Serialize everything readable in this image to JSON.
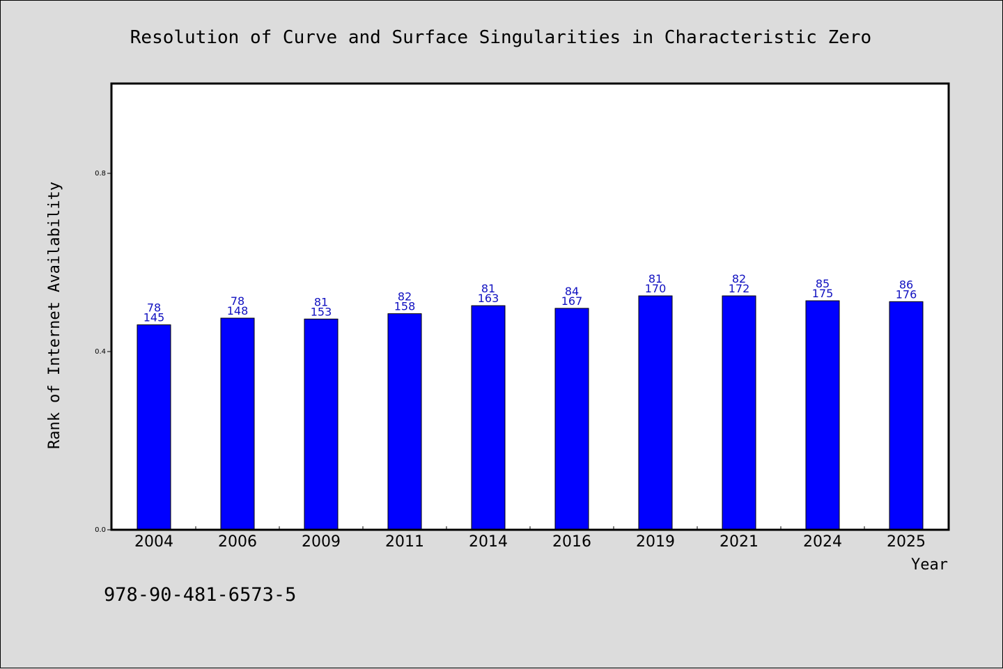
{
  "chart_data": {
    "type": "bar",
    "title": "Resolution of Curve and Surface Singularities in Characteristic Zero",
    "xlabel": "Year",
    "ylabel": "Rank of Internet Availability",
    "categories": [
      "2004",
      "2006",
      "2009",
      "2011",
      "2014",
      "2016",
      "2019",
      "2021",
      "2024",
      "2025"
    ],
    "series": [
      {
        "values": [
          0.46,
          0.475,
          0.473,
          0.485,
          0.503,
          0.497,
          0.525,
          0.525,
          0.514,
          0.512
        ],
        "labels_top": [
          "78",
          "78",
          "81",
          "82",
          "81",
          "84",
          "81",
          "82",
          "85",
          "86"
        ],
        "labels_bottom": [
          "145",
          "148",
          "153",
          "158",
          "163",
          "167",
          "170",
          "172",
          "175",
          "176"
        ],
        "color": "#0000ff"
      }
    ],
    "ylim": [
      0.0,
      1.0
    ],
    "yticks": [
      0.0,
      0.4,
      0.8
    ],
    "ytick_labels": [
      "0.0",
      "0.4",
      "0.8"
    ],
    "grid": false,
    "legend": "none"
  },
  "footer": {
    "isbn": "978-90-481-6573-5"
  }
}
